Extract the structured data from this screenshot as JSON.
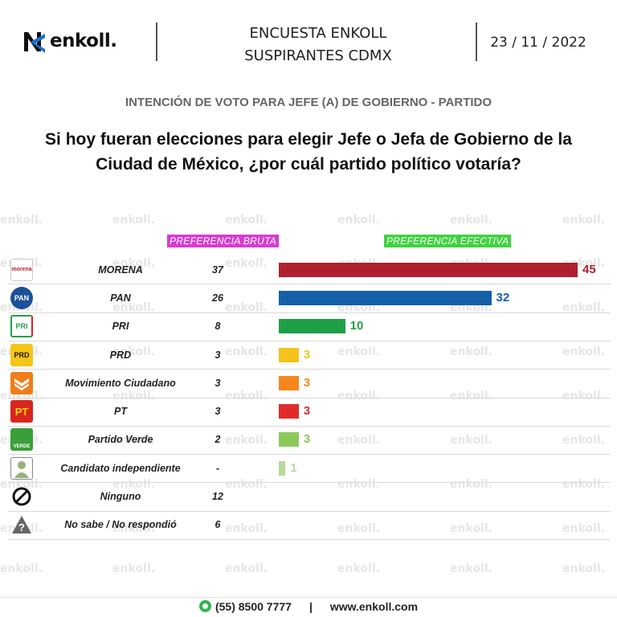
{
  "header": {
    "brand": "enkoll.",
    "title_line1": "ENCUESTA ENKOLL",
    "title_line2": "SUSPIRANTES CDMX",
    "date": "23 / 11 / 2022"
  },
  "subtitle": "INTENCIÓN DE VOTO PARA JEFE (A) DE GOBIERNO - PARTIDO",
  "question_line1": "Si hoy fueran elecciones para elegir Jefe o Jefa de Gobierno de la",
  "question_line2": "Ciudad de México, ¿por cuál partido político votaría?",
  "watermark": "enkoll.",
  "colors": {
    "bruta_header": "#d63cd0",
    "efectiva_header": "#3fd23f",
    "morena": "#b0202e",
    "pan": "#1560a8",
    "pri": "#1fa046",
    "prd": "#f7c21b",
    "mc": "#f7871d",
    "pt": "#e12b2b",
    "verde": "#8cc85a",
    "independiente": "#b9d89a"
  },
  "chart_data": {
    "type": "bar",
    "columns": [
      "PREFERENCIA BRUTA",
      "PREFERENCIA EFECTIVA"
    ],
    "categories": [
      "MORENA",
      "PAN",
      "PRI",
      "PRD",
      "Movimiento Ciudadano",
      "PT",
      "Partido Verde",
      "Candidato independiente",
      "Ninguno",
      "No sabe / No respondió"
    ],
    "series": [
      {
        "name": "PREFERENCIA BRUTA",
        "values": [
          "37",
          "26",
          "8",
          "3",
          "3",
          "3",
          "2",
          "-",
          "12",
          "6"
        ]
      },
      {
        "name": "PREFERENCIA EFECTIVA",
        "values": [
          45,
          32,
          10,
          3,
          3,
          3,
          3,
          1,
          null,
          null
        ]
      }
    ],
    "bar_colors": [
      "#b0202e",
      "#1560a8",
      "#1fa046",
      "#f7c21b",
      "#f7871d",
      "#e12b2b",
      "#8cc85a",
      "#b9d89a",
      null,
      null
    ],
    "label_colors": [
      "#b0202e",
      "#1560a8",
      "#1fa046",
      "#f7c21b",
      "#f7871d",
      "#e12b2b",
      "#8cc85a",
      "#b9d89a",
      null,
      null
    ],
    "icons": [
      {
        "name": "morena-logo-icon",
        "text": "morena"
      },
      {
        "name": "pan-logo-icon",
        "text": "PAN"
      },
      {
        "name": "pri-logo-icon",
        "text": "PRI"
      },
      {
        "name": "prd-logo-icon",
        "text": "PRD"
      },
      {
        "name": "mc-logo-icon",
        "text": ""
      },
      {
        "name": "pt-logo-icon",
        "text": "PT"
      },
      {
        "name": "verde-logo-icon",
        "text": "VERDE"
      },
      {
        "name": "person-icon",
        "text": ""
      },
      {
        "name": "prohibited-icon",
        "text": ""
      },
      {
        "name": "question-icon",
        "text": "?"
      }
    ],
    "xlim": [
      0,
      45
    ]
  },
  "footer": {
    "phone": "(55) 8500 7777",
    "separator": "|",
    "website": "www.enkoll.com"
  }
}
